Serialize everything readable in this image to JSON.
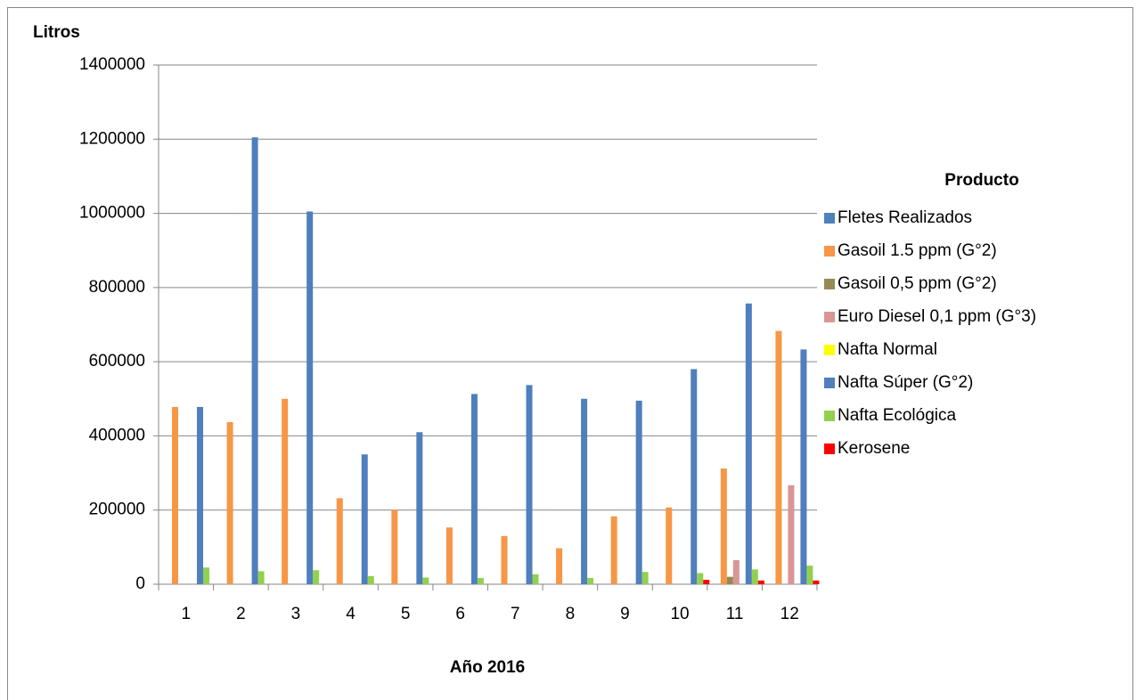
{
  "chart_data": {
    "type": "bar",
    "y_label": "Litros",
    "x_label": "Año 2016",
    "legend_title": "Producto",
    "categories": [
      "1",
      "2",
      "3",
      "4",
      "5",
      "6",
      "7",
      "8",
      "9",
      "10",
      "11",
      "12"
    ],
    "series": [
      {
        "name": "Fletes Realizados",
        "color": "#4f81bd",
        "values": [
          0,
          0,
          0,
          0,
          0,
          0,
          0,
          0,
          0,
          0,
          0,
          0
        ]
      },
      {
        "name": "Gasoil 1.5 ppm  (G°2)",
        "color": "#f79646",
        "values": [
          478000,
          437000,
          500000,
          232000,
          200000,
          153000,
          130000,
          97000,
          183000,
          207000,
          312000,
          683000
        ]
      },
      {
        "name": "Gasoil 0,5 ppm (G°2)",
        "color": "#948a54",
        "values": [
          0,
          0,
          0,
          0,
          0,
          0,
          0,
          0,
          0,
          0,
          20000,
          0
        ]
      },
      {
        "name": "Euro Diesel  0,1 ppm (G°3)",
        "color": "#d99694",
        "values": [
          0,
          0,
          0,
          0,
          0,
          0,
          0,
          0,
          0,
          0,
          65000,
          267000
        ]
      },
      {
        "name": "Nafta Normal",
        "color": "#ffff00",
        "values": [
          0,
          0,
          0,
          0,
          0,
          0,
          0,
          0,
          0,
          0,
          0,
          0
        ]
      },
      {
        "name": "Nafta Súper (G°2)",
        "color": "#4f7fbd",
        "values": [
          478000,
          1205000,
          1005000,
          350000,
          410000,
          513000,
          537000,
          500000,
          495000,
          580000,
          757000,
          633000
        ]
      },
      {
        "name": "Nafta Ecológica",
        "color": "#92d050",
        "values": [
          45000,
          35000,
          38000,
          22000,
          18000,
          17000,
          27000,
          17000,
          33000,
          30000,
          40000,
          50000
        ]
      },
      {
        "name": "Kerosene",
        "color": "#ff0000",
        "values": [
          0,
          0,
          0,
          0,
          0,
          0,
          0,
          0,
          0,
          12000,
          10000,
          10000
        ]
      }
    ],
    "ylim": [
      0,
      1400000
    ],
    "yticks": [
      0,
      200000,
      400000,
      600000,
      800000,
      1000000,
      1200000,
      1400000
    ],
    "grid": true,
    "legend": "right"
  }
}
